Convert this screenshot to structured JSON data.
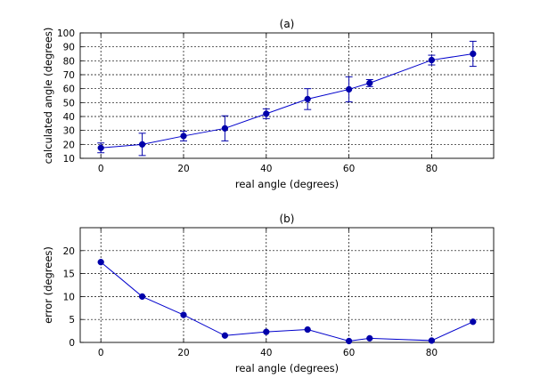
{
  "chart_data": [
    {
      "type": "line",
      "title": "(a)",
      "xlabel": "real angle (degrees)",
      "ylabel": "calculated angle (degrees)",
      "xlim": [
        -5,
        95
      ],
      "ylim": [
        10,
        100
      ],
      "xticks": [
        0,
        20,
        40,
        60,
        80
      ],
      "yticks": [
        10,
        20,
        30,
        40,
        50,
        60,
        70,
        80,
        90,
        100
      ],
      "grid": true,
      "color": "#0000cc",
      "x": [
        0,
        10,
        20,
        30,
        40,
        50,
        60,
        65,
        80,
        90
      ],
      "y": [
        17.5,
        20,
        26,
        31.5,
        42,
        52.5,
        59.5,
        64,
        80.5,
        85
      ],
      "error": [
        3.5,
        8,
        3.5,
        9,
        3.5,
        7.5,
        9,
        2.5,
        3.5,
        9
      ]
    },
    {
      "type": "line",
      "title": "(b)",
      "xlabel": "real angle (degrees)",
      "ylabel": "error (degrees)",
      "xlim": [
        -5,
        95
      ],
      "ylim": [
        0,
        25
      ],
      "xticks": [
        0,
        20,
        40,
        60,
        80
      ],
      "yticks": [
        0,
        5,
        10,
        15,
        20
      ],
      "grid": true,
      "color": "#0000cc",
      "x": [
        0,
        10,
        20,
        30,
        40,
        50,
        60,
        65,
        80,
        90
      ],
      "y": [
        17.5,
        10,
        6,
        1.5,
        2.3,
        2.8,
        0.3,
        0.9,
        0.4,
        4.5
      ]
    }
  ]
}
